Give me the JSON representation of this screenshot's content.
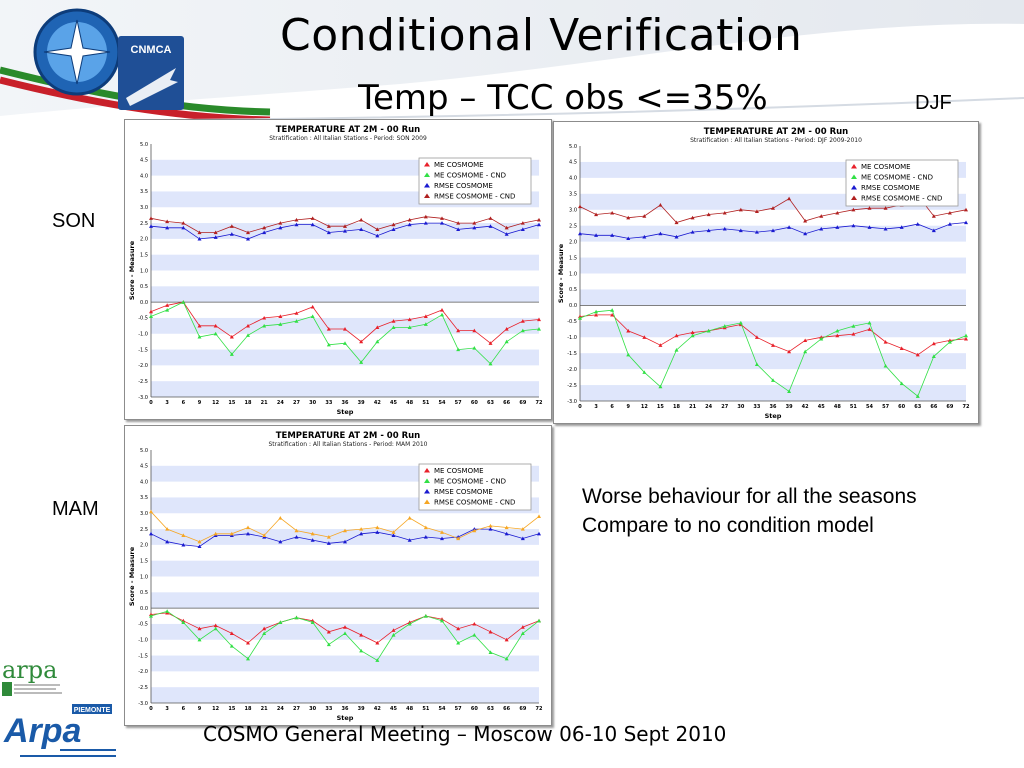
{
  "slide": {
    "title": "Conditional Verification",
    "subtitle": "Temp – TCC obs <=35%",
    "footer": "COSMO General Meeting – Moscow 06-10 Sept 2010",
    "note_lines": [
      "Worse behaviour  for all the seasons",
      "Compare to no condition model"
    ],
    "season_labels": {
      "son": "SON",
      "djf": "DJF",
      "mam": "MAM"
    },
    "logos": {
      "top": "CNMCA",
      "arpa": "arpa",
      "arpa_piemonte": "Arpa",
      "piemonte": "PIEMONTE"
    }
  },
  "colors": {
    "me": "#e8202a",
    "me_cnd": "#31e045",
    "rmse": "#1a1ad0",
    "rmse_cnd_dark": "#b02020",
    "rmse_cnd_orange": "#f6a623",
    "band": "#dfe6fb",
    "zero_line": "#555555",
    "banner_green": "#2a8a2a",
    "banner_red": "#c8202a"
  },
  "chart_data": [
    {
      "id": "son",
      "type": "line",
      "title": "TEMPERATURE AT 2M - 00 Run",
      "subtitle": "Stratification : All Italian Stations - Period: SON 2009",
      "xlabel": "Step",
      "ylabel": "Score - Measure",
      "x": [
        0,
        3,
        6,
        9,
        12,
        15,
        18,
        21,
        24,
        27,
        30,
        33,
        36,
        39,
        42,
        45,
        48,
        51,
        54,
        57,
        60,
        63,
        66,
        69,
        72
      ],
      "ylim": [
        -3.0,
        5.0
      ],
      "yticks": [
        "5.0",
        "4.5",
        "4.0",
        "3.5",
        "3.0",
        "2.5",
        "2.0",
        "1.5",
        "1.0",
        "0.5",
        "0.0",
        "-0.5",
        "-1.0",
        "-1.5",
        "-2.0",
        "-2.5",
        "-3.0"
      ],
      "legend_position": "top-right",
      "series": [
        {
          "name": "ME COSMOME",
          "color_key": "me",
          "values": [
            -0.3,
            -0.1,
            0.0,
            -0.75,
            -0.75,
            -1.1,
            -0.75,
            -0.5,
            -0.45,
            -0.35,
            -0.15,
            -0.85,
            -0.85,
            -1.25,
            -0.8,
            -0.6,
            -0.55,
            -0.45,
            -0.25,
            -0.9,
            -0.9,
            -1.3,
            -0.85,
            -0.6,
            -0.55
          ]
        },
        {
          "name": "ME COSMOME - CND",
          "color_key": "me_cnd",
          "values": [
            -0.45,
            -0.25,
            0.0,
            -1.1,
            -1.0,
            -1.65,
            -1.05,
            -0.75,
            -0.7,
            -0.6,
            -0.45,
            -1.35,
            -1.3,
            -1.9,
            -1.25,
            -0.8,
            -0.8,
            -0.7,
            -0.4,
            -1.5,
            -1.45,
            -1.95,
            -1.25,
            -0.9,
            -0.85
          ]
        },
        {
          "name": "RMSE COSMOME",
          "color_key": "rmse",
          "values": [
            2.4,
            2.35,
            2.35,
            2.0,
            2.05,
            2.15,
            2.0,
            2.2,
            2.35,
            2.45,
            2.45,
            2.2,
            2.25,
            2.3,
            2.1,
            2.3,
            2.45,
            2.5,
            2.5,
            2.3,
            2.35,
            2.4,
            2.15,
            2.3,
            2.45
          ]
        },
        {
          "name": "RMSE COSMOME - CND",
          "color_key": "rmse_cnd_dark",
          "values": [
            2.65,
            2.55,
            2.5,
            2.2,
            2.2,
            2.4,
            2.2,
            2.35,
            2.5,
            2.6,
            2.65,
            2.4,
            2.4,
            2.6,
            2.3,
            2.45,
            2.6,
            2.7,
            2.65,
            2.5,
            2.5,
            2.65,
            2.35,
            2.5,
            2.6
          ]
        }
      ]
    },
    {
      "id": "djf",
      "type": "line",
      "title": "TEMPERATURE AT 2M - 00 Run",
      "subtitle": "Stratification : All Italian Stations - Period: DJF 2009-2010",
      "xlabel": "Step",
      "ylabel": "Score - Measure",
      "x": [
        0,
        3,
        6,
        9,
        12,
        15,
        18,
        21,
        24,
        27,
        30,
        33,
        36,
        39,
        42,
        45,
        48,
        51,
        54,
        57,
        60,
        63,
        66,
        69,
        72
      ],
      "ylim": [
        -3.0,
        5.0
      ],
      "yticks": [
        "5.0",
        "4.5",
        "4.0",
        "3.5",
        "3.0",
        "2.5",
        "2.0",
        "1.5",
        "1.0",
        "0.5",
        "0.0",
        "-0.5",
        "-1.0",
        "-1.5",
        "-2.0",
        "-2.5",
        "-3.0"
      ],
      "legend_position": "top-right",
      "series": [
        {
          "name": "ME COSMOME",
          "color_key": "me",
          "values": [
            -0.35,
            -0.3,
            -0.3,
            -0.8,
            -1.0,
            -1.25,
            -0.95,
            -0.85,
            -0.8,
            -0.7,
            -0.6,
            -1.0,
            -1.25,
            -1.45,
            -1.1,
            -1.0,
            -0.95,
            -0.9,
            -0.75,
            -1.15,
            -1.35,
            -1.55,
            -1.2,
            -1.1,
            -1.05
          ]
        },
        {
          "name": "ME COSMOME - CND",
          "color_key": "me_cnd",
          "values": [
            -0.4,
            -0.2,
            -0.15,
            -1.55,
            -2.1,
            -2.55,
            -1.4,
            -0.95,
            -0.8,
            -0.65,
            -0.55,
            -1.85,
            -2.35,
            -2.7,
            -1.45,
            -1.05,
            -0.8,
            -0.65,
            -0.55,
            -1.9,
            -2.45,
            -2.85,
            -1.6,
            -1.15,
            -0.95
          ]
        },
        {
          "name": "RMSE COSMOME",
          "color_key": "rmse",
          "values": [
            2.25,
            2.2,
            2.2,
            2.1,
            2.15,
            2.25,
            2.15,
            2.3,
            2.35,
            2.4,
            2.35,
            2.3,
            2.35,
            2.45,
            2.25,
            2.4,
            2.45,
            2.5,
            2.45,
            2.4,
            2.45,
            2.55,
            2.35,
            2.55,
            2.6
          ]
        },
        {
          "name": "RMSE COSMOME - CND",
          "color_key": "rmse_cnd_dark",
          "values": [
            3.1,
            2.85,
            2.9,
            2.75,
            2.8,
            3.15,
            2.6,
            2.75,
            2.85,
            2.9,
            3.0,
            2.95,
            3.05,
            3.35,
            2.65,
            2.8,
            2.9,
            3.0,
            3.05,
            3.05,
            3.15,
            3.45,
            2.8,
            2.9,
            3.0
          ]
        }
      ]
    },
    {
      "id": "mam",
      "type": "line",
      "title": "TEMPERATURE AT 2M - 00 Run",
      "subtitle": "Stratification : All Italian Stations - Period: MAM 2010",
      "xlabel": "Step",
      "ylabel": "Score - Measure",
      "x": [
        0,
        3,
        6,
        9,
        12,
        15,
        18,
        21,
        24,
        27,
        30,
        33,
        36,
        39,
        42,
        45,
        48,
        51,
        54,
        57,
        60,
        63,
        66,
        69,
        72
      ],
      "ylim": [
        -3.0,
        5.0
      ],
      "yticks": [
        "5.0",
        "4.5",
        "4.0",
        "3.5",
        "3.0",
        "2.5",
        "2.0",
        "1.5",
        "1.0",
        "0.5",
        "0.0",
        "-0.5",
        "-1.0",
        "-1.5",
        "-2.0",
        "-2.5",
        "-3.0"
      ],
      "legend_position": "top-right",
      "series": [
        {
          "name": "ME COSMOME",
          "color_key": "me",
          "values": [
            -0.2,
            -0.15,
            -0.4,
            -0.65,
            -0.55,
            -0.8,
            -1.1,
            -0.65,
            -0.45,
            -0.3,
            -0.4,
            -0.75,
            -0.6,
            -0.85,
            -1.1,
            -0.7,
            -0.45,
            -0.25,
            -0.35,
            -0.65,
            -0.5,
            -0.75,
            -1.0,
            -0.6,
            -0.4
          ]
        },
        {
          "name": "ME COSMOME - CND",
          "color_key": "me_cnd",
          "values": [
            -0.25,
            -0.1,
            -0.45,
            -1.0,
            -0.65,
            -1.2,
            -1.6,
            -0.8,
            -0.45,
            -0.3,
            -0.45,
            -1.15,
            -0.8,
            -1.35,
            -1.65,
            -0.85,
            -0.5,
            -0.25,
            -0.4,
            -1.1,
            -0.85,
            -1.4,
            -1.6,
            -0.8,
            -0.4
          ]
        },
        {
          "name": "RMSE COSMOME",
          "color_key": "rmse",
          "values": [
            2.35,
            2.1,
            2.0,
            1.95,
            2.3,
            2.3,
            2.35,
            2.25,
            2.1,
            2.25,
            2.15,
            2.05,
            2.1,
            2.35,
            2.4,
            2.3,
            2.15,
            2.25,
            2.2,
            2.25,
            2.5,
            2.5,
            2.35,
            2.2,
            2.35
          ]
        },
        {
          "name": "RMSE COSMOME - CND",
          "color_key": "rmse_cnd_orange",
          "values": [
            3.05,
            2.5,
            2.3,
            2.1,
            2.35,
            2.35,
            2.55,
            2.3,
            2.85,
            2.45,
            2.35,
            2.25,
            2.45,
            2.5,
            2.55,
            2.4,
            2.85,
            2.55,
            2.4,
            2.2,
            2.45,
            2.6,
            2.55,
            2.5,
            2.9
          ]
        }
      ]
    }
  ]
}
